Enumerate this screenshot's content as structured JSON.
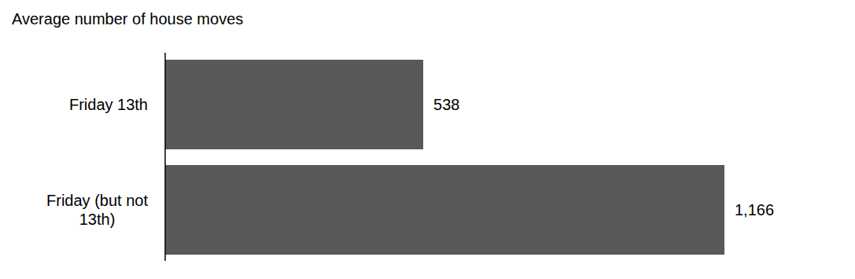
{
  "chart_data": {
    "type": "bar",
    "orientation": "horizontal",
    "title": "Average number of house moves",
    "categories": [
      "Friday 13th",
      "Friday (but not 13th)"
    ],
    "values": [
      538,
      1166
    ],
    "value_labels": [
      "538",
      "1,166"
    ],
    "color": "#58595b",
    "xlim": [
      0,
      1166
    ],
    "data_labels": true,
    "tick_labels": "y",
    "grid": false
  }
}
